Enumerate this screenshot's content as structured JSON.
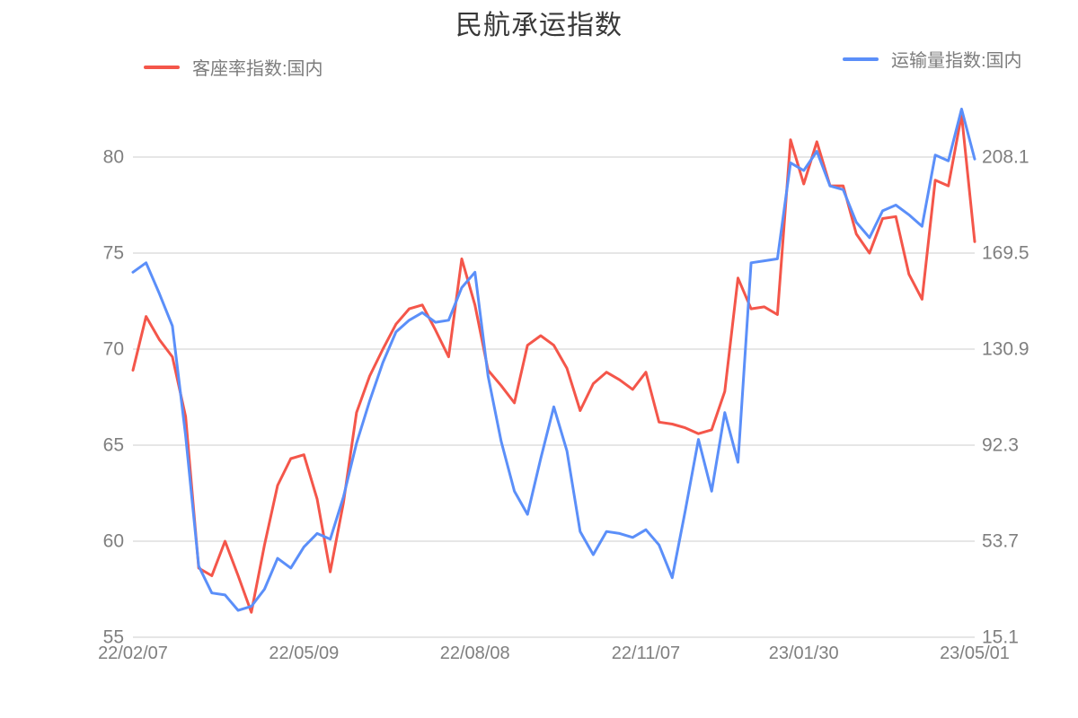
{
  "header": {
    "title": "民航承运指数"
  },
  "legend": {
    "left": {
      "label": "客座率指数:国内",
      "color": "#f4564a"
    },
    "right": {
      "label": "运输量指数:国内",
      "color": "#5b8ff9"
    }
  },
  "colors": {
    "grid": "#cccccc",
    "axis_text": "#7f7f7f",
    "title_text": "#383838",
    "red_series": "#f4564a",
    "blue_series": "#5b8ff9"
  },
  "chart_data": {
    "type": "line",
    "title": "民航承运指数",
    "grid": "horizontal-only",
    "legend_position": "top-left and top-right",
    "x_point_count": 65,
    "x_tick_indices": [
      0,
      13,
      26,
      39,
      51,
      64
    ],
    "x_tick_labels": [
      "22/02/07",
      "22/05/09",
      "22/08/08",
      "22/11/07",
      "23/01/30",
      "23/05/01"
    ],
    "left_axis": {
      "ticks": [
        "55",
        "60",
        "65",
        "70",
        "75",
        "80"
      ],
      "min": 55,
      "max": 80
    },
    "right_axis": {
      "ticks": [
        "15.1",
        "53.7",
        "92.3",
        "130.9",
        "169.5",
        "208.1"
      ],
      "min": 15.1,
      "max": 208.1
    },
    "series": [
      {
        "name": "客座率指数:国内",
        "axis": "left",
        "color": "#f4564a",
        "values": [
          68.9,
          71.7,
          70.5,
          69.6,
          66.5,
          58.6,
          58.2,
          60.0,
          58.2,
          56.3,
          59.8,
          62.9,
          64.3,
          64.5,
          62.2,
          58.4,
          62.0,
          66.7,
          68.6,
          70.0,
          71.3,
          72.1,
          72.3,
          71.0,
          69.6,
          74.7,
          72.3,
          68.9,
          68.1,
          67.2,
          70.2,
          70.7,
          70.2,
          69.0,
          66.8,
          68.2,
          68.8,
          68.4,
          67.9,
          68.8,
          66.2,
          66.1,
          65.9,
          65.6,
          65.8,
          67.8,
          73.7,
          72.1,
          72.2,
          71.8,
          80.9,
          78.6,
          80.8,
          78.5,
          78.5,
          76.0,
          75.0,
          76.8,
          76.9,
          73.9,
          72.6,
          78.8,
          78.5,
          82.2,
          75.6
        ]
      },
      {
        "name": "运输量指数:国内",
        "axis": "right",
        "color": "#5b8ff9",
        "values": [
          161.8,
          165.6,
          153.3,
          140.2,
          96.2,
          43.7,
          32.9,
          32.1,
          25.9,
          27.5,
          34.4,
          46.8,
          42.9,
          51.4,
          56.8,
          54.5,
          71.5,
          93.1,
          110.1,
          125.5,
          137.8,
          142.5,
          145.6,
          141.7,
          142.5,
          155.6,
          161.8,
          120.1,
          93.8,
          73.8,
          64.5,
          86.9,
          107.7,
          90.0,
          57.6,
          48.3,
          57.6,
          56.8,
          55.2,
          58.3,
          52.2,
          39.0,
          66.1,
          94.6,
          73.8,
          105.4,
          85.4,
          165.6,
          166.4,
          167.2,
          205.8,
          202.7,
          210.4,
          196.5,
          195.0,
          181.9,
          175.7,
          186.5,
          188.8,
          184.9,
          180.3,
          208.9,
          206.6,
          227.4,
          207.3
        ]
      }
    ]
  }
}
